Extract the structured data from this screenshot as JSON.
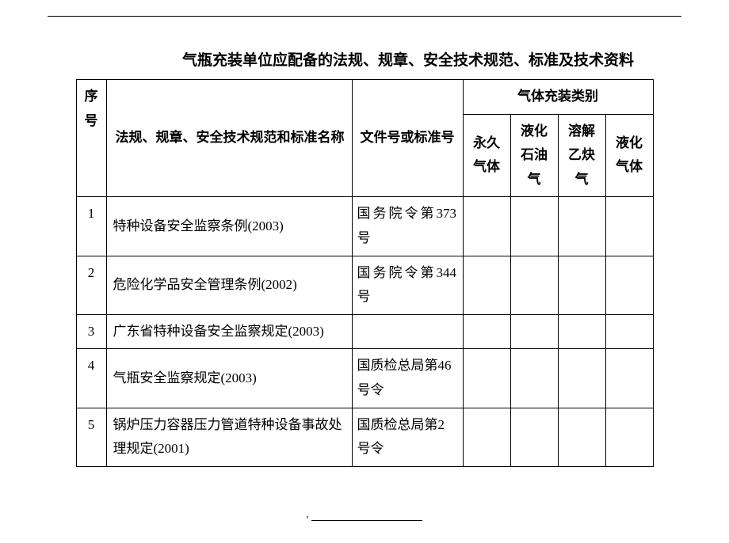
{
  "title": "气瓶充装单位应配备的法规、规章、安全技术规范、标准及技术资料",
  "headers": {
    "seq": "序号",
    "name": "法规、规章、安全技术规范和标准名称",
    "docno": "文件号或标准号",
    "catGroup": "气体充装类别",
    "cat1": "永久气体",
    "cat2": "液化石油气",
    "cat3": "溶解乙炔气",
    "cat4": "液化气体"
  },
  "rows": [
    {
      "seq": "1",
      "name": "特种设备安全监察条例(2003)",
      "docno": "国务院令第373 号",
      "docnoSpaced": true
    },
    {
      "seq": "2",
      "name": "危险化学品安全管理条例(2002)",
      "docno": "国务院令第344 号",
      "docnoSpaced": true
    },
    {
      "seq": "3",
      "name": "广东省特种设备安全监察规定(2003)",
      "docno": ""
    },
    {
      "seq": "4",
      "name": "气瓶安全监察规定(2003)",
      "docno": "国质检总局第46 号令"
    },
    {
      "seq": "5",
      "name": "锅炉压力容器压力管道特种设备事故处理规定(2001)",
      "docno": "国质检总局第2 号令"
    }
  ],
  "style": {
    "background": "#ffffff",
    "borderColor": "#000000",
    "fontFamily": "SimSun",
    "titleFontSize": 19,
    "bodyFontSize": 17
  }
}
